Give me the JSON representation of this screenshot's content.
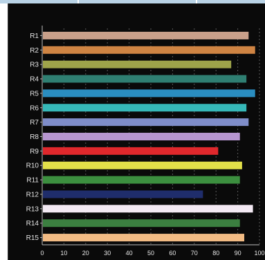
{
  "chart_data": {
    "type": "bar",
    "orientation": "horizontal",
    "categories": [
      "R1",
      "R2",
      "R3",
      "R4",
      "R5",
      "R6",
      "R7",
      "R8",
      "R9",
      "R10",
      "R11",
      "R12",
      "R13",
      "R14",
      "R15"
    ],
    "values": [
      95,
      98,
      87,
      94,
      98,
      94,
      95,
      91,
      81,
      92,
      91,
      74,
      97,
      91,
      93
    ],
    "colors": [
      "#c9a08a",
      "#cf8443",
      "#9ea34a",
      "#2f7f72",
      "#2a8dc0",
      "#36b8b8",
      "#7f8dc9",
      "#b796d0",
      "#e0282c",
      "#e2e049",
      "#3c8f3f",
      "#1f2d6b",
      "#f3e9f3",
      "#3b7f40",
      "#f2bb84"
    ],
    "xlim": [
      0,
      100
    ],
    "xticks": [
      "0",
      "10",
      "20",
      "30",
      "40",
      "50",
      "60",
      "70",
      "80",
      "90",
      "100"
    ],
    "grid": true,
    "title": "",
    "xlabel": "",
    "ylabel": ""
  }
}
